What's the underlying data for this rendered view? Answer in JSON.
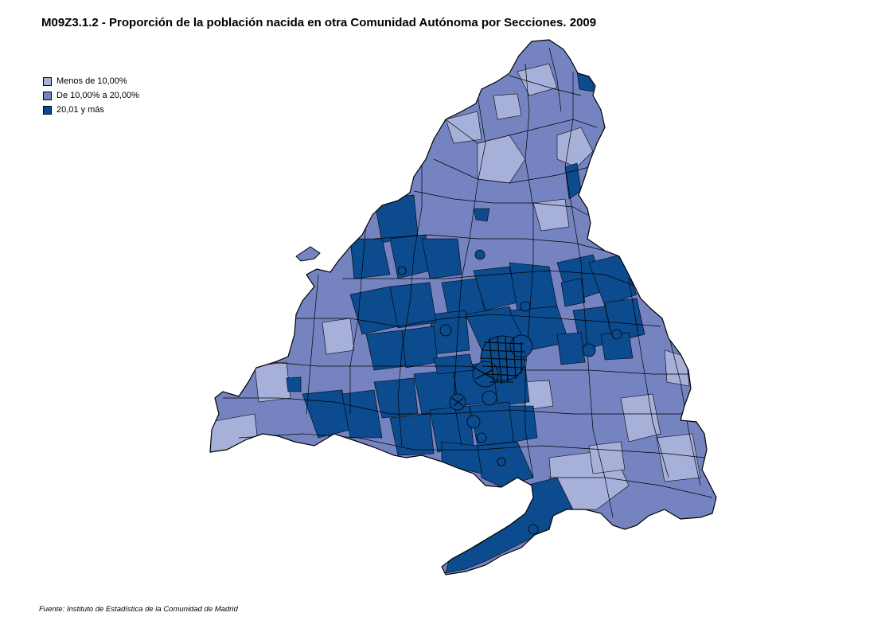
{
  "title": "M09Z3.1.2 - Proporción de la población nacida en otra Comunidad Autónoma por Secciones. 2009",
  "legend": [
    {
      "label": "Menos de 10,00%",
      "color": "#a7b0d9"
    },
    {
      "label": "De 10,00% a 20,00%",
      "color": "#7584c1"
    },
    {
      "label": "20,01 y más",
      "color": "#0b4b8e"
    }
  ],
  "source": "Fuente: Instituto de Estadística de la Comunidad de Madrid",
  "colors": {
    "boundary": "#000000",
    "low": "#a7b0d9",
    "mid": "#7584c1",
    "high": "#0b4b8e"
  }
}
